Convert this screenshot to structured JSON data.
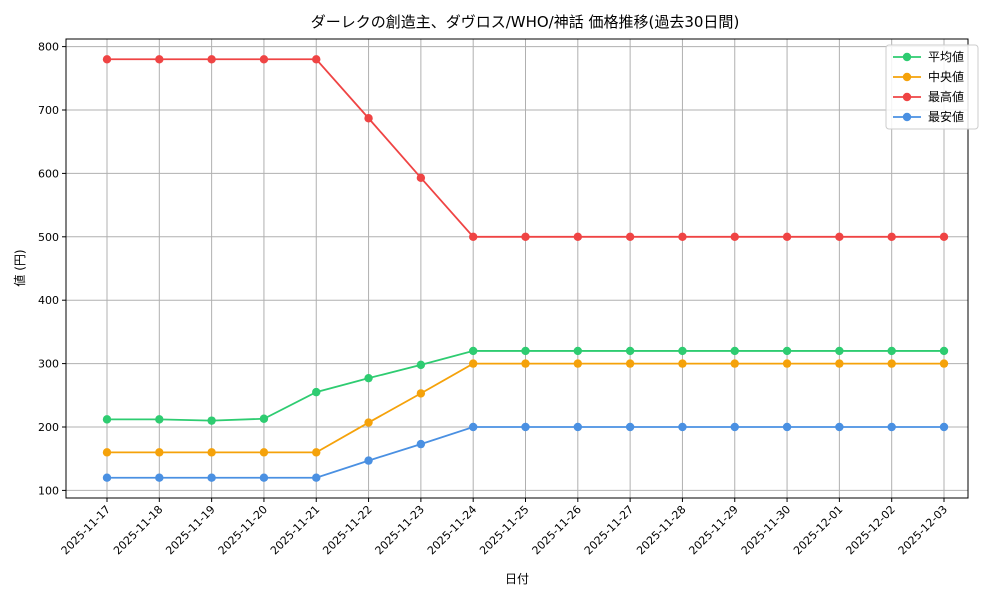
{
  "chart_data": {
    "type": "line",
    "title": "ダーレクの創造主、ダヴロス/WHO/神話 価格推移(過去30日間)",
    "xlabel": "日付",
    "ylabel": "値 (円)",
    "categories": [
      "2025-11-17",
      "2025-11-18",
      "2025-11-19",
      "2025-11-20",
      "2025-11-21",
      "2025-11-22",
      "2025-11-23",
      "2025-11-24",
      "2025-11-25",
      "2025-11-26",
      "2025-11-27",
      "2025-11-28",
      "2025-11-29",
      "2025-11-30",
      "2025-12-01",
      "2025-12-02",
      "2025-12-03"
    ],
    "ylim": [
      88,
      812
    ],
    "yticks": [
      100,
      200,
      300,
      400,
      500,
      600,
      700,
      800
    ],
    "grid": true,
    "legend_position": "top-right",
    "series": [
      {
        "name": "平均値",
        "color": "#2ecc71",
        "values": [
          212,
          212,
          210,
          213,
          255,
          277,
          298,
          320,
          320,
          320,
          320,
          320,
          320,
          320,
          320,
          320,
          320
        ]
      },
      {
        "name": " 中央値",
        "color": "#f5a20a",
        "values": [
          160,
          160,
          160,
          160,
          160,
          207,
          253,
          300,
          300,
          300,
          300,
          300,
          300,
          300,
          300,
          300,
          300
        ]
      },
      {
        "name": "最高値",
        "color": "#ef4444",
        "values": [
          780,
          780,
          780,
          780,
          780,
          687,
          593,
          500,
          500,
          500,
          500,
          500,
          500,
          500,
          500,
          500,
          500
        ]
      },
      {
        "name": "最安値",
        "color": "#4a90e2",
        "values": [
          120,
          120,
          120,
          120,
          120,
          147,
          173,
          200,
          200,
          200,
          200,
          200,
          200,
          200,
          200,
          200,
          200
        ]
      }
    ]
  }
}
